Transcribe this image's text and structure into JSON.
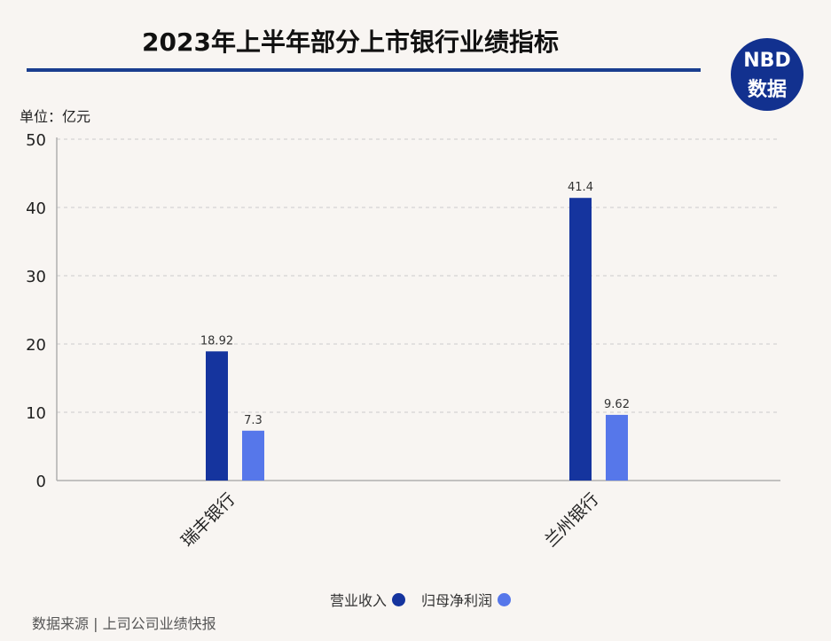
{
  "header": {
    "title": "2023年上半年部分上市银行业绩指标",
    "logo_top": "NBD",
    "logo_bottom": "数据"
  },
  "unit_label": "单位：亿元",
  "source": "数据来源 | 上司公司业绩快报",
  "colors": {
    "series1": "#15349e",
    "series2": "#5677ea",
    "grid": "#cccccc",
    "axis": "#b0b0b0"
  },
  "chart_data": {
    "type": "bar",
    "categories": [
      "瑞丰银行",
      "兰州银行"
    ],
    "series": [
      {
        "name": "营业收入",
        "values": [
          18.92,
          41.4
        ],
        "labels": [
          "18.92",
          "41.4"
        ]
      },
      {
        "name": "归母净利润",
        "values": [
          7.3,
          9.62
        ],
        "labels": [
          "7.3",
          "9.62"
        ]
      }
    ],
    "yticks": [
      "0",
      "10",
      "20",
      "30",
      "40",
      "50"
    ],
    "ylim": [
      0,
      50
    ],
    "grid": true,
    "legend": "bottom"
  }
}
